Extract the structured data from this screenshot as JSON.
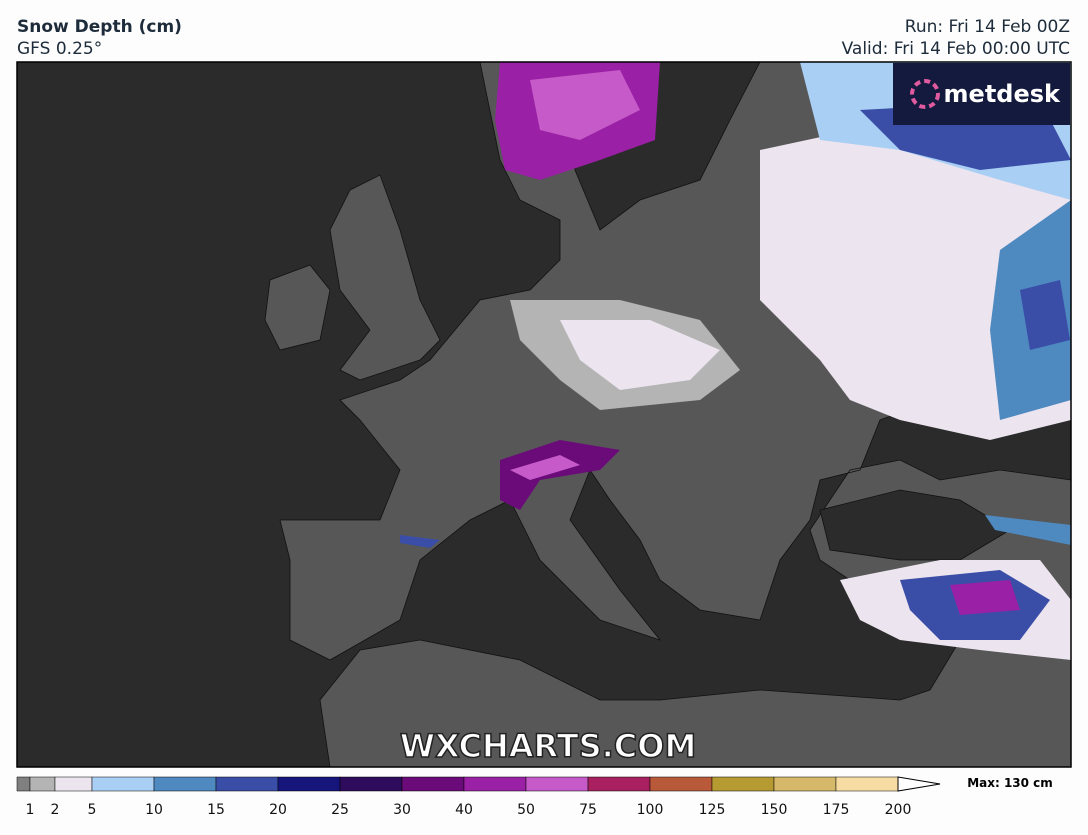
{
  "header": {
    "title": "Snow Depth (cm)",
    "model": "GFS 0.25°",
    "run": "Run: Fri 14 Feb 00Z",
    "valid": "Valid: Fri 14 Feb 00:00 UTC"
  },
  "logo": "metdesk",
  "watermark": "WXCHARTS.COM",
  "colorbar": {
    "ticks": [
      1,
      2,
      5,
      10,
      15,
      20,
      25,
      30,
      40,
      50,
      75,
      100,
      125,
      150,
      175,
      200
    ],
    "under_color": "#808080",
    "colors": [
      "#b4b4b4",
      "#ece4ee",
      "#aacff4",
      "#4e89c0",
      "#3a4ea8",
      "#15157b",
      "#2e0b5c",
      "#6b0b79",
      "#9a20a5",
      "#c55ac8",
      "#a8205f",
      "#b85a3a",
      "#b69a32",
      "#d6b86a",
      "#f6dca2"
    ],
    "max_label": "Max: 130 cm"
  }
}
